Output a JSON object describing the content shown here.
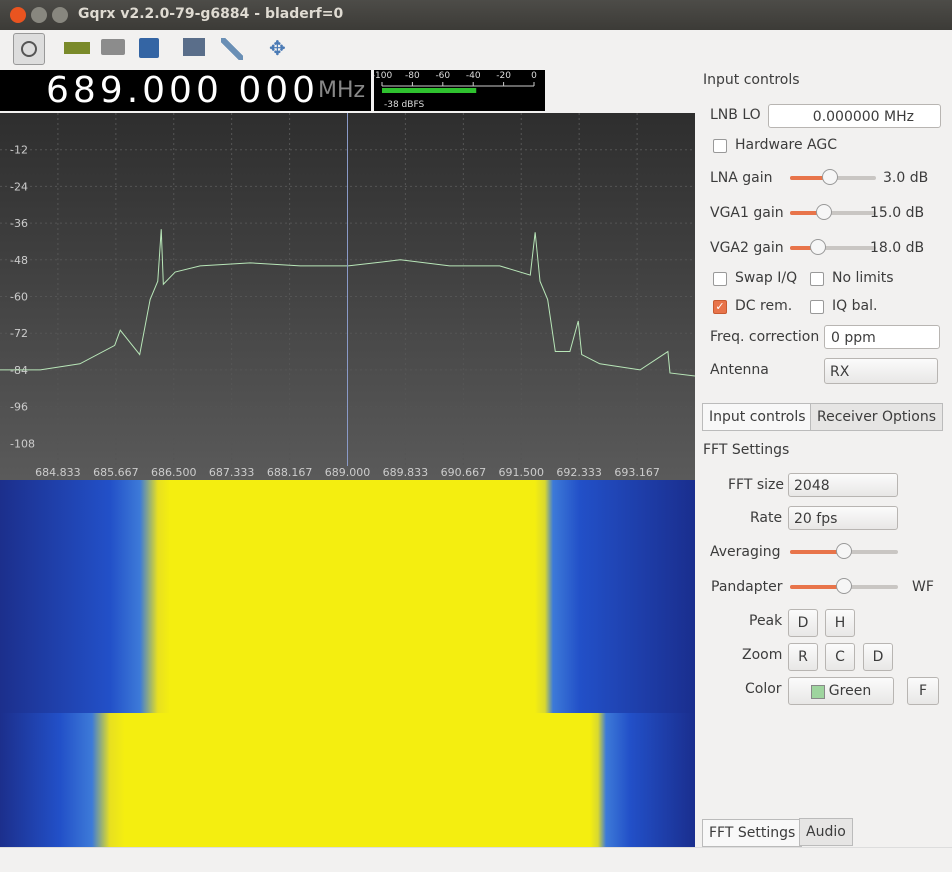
{
  "window": {
    "title": "Gqrx v2.2.0-79-g6884 - bladerf=0"
  },
  "frequency": {
    "digits": "689.000 000",
    "unit": "MHz"
  },
  "meter": {
    "lim": [
      -100,
      0
    ],
    "ticks": [
      -100,
      -80,
      -60,
      -40,
      -20,
      0
    ],
    "level": -38,
    "level_label": "-38 dBFS"
  },
  "plot": {
    "ylim": [
      -120,
      0
    ],
    "yticks": [
      -12,
      -24,
      -36,
      -48,
      -60,
      -72,
      -84,
      -96,
      -108
    ],
    "xlim": [
      684,
      694
    ],
    "xticks": [
      684.833,
      685.667,
      {
        "value": 686.5,
        "label": "686.500"
      },
      687.333,
      688.167,
      {
        "value": 689,
        "label": "689.000"
      },
      689.833,
      690.667,
      {
        "value": 691.5,
        "label": "691.500"
      },
      692.333,
      693.167
    ],
    "trace": {
      "x": [
        684.0,
        684.58,
        685.15,
        685.65,
        685.73,
        686.01,
        686.16,
        686.27,
        686.32,
        686.35,
        686.52,
        686.88,
        687.6,
        688.32,
        689.01,
        689.76,
        690.47,
        691.19,
        691.63,
        691.7,
        691.77,
        691.88,
        691.99,
        692.2,
        692.32,
        692.37,
        692.63,
        693.21,
        693.61,
        693.64,
        694.0
      ],
      "y": [
        -84,
        -84,
        -82,
        -76,
        -71,
        -79,
        -61,
        -55,
        -38,
        -56,
        -52,
        -50,
        -49,
        -50,
        -50,
        -48,
        -50,
        -50,
        -53,
        -39,
        -55,
        -61,
        -78,
        -78,
        -68,
        -79,
        -82,
        -84,
        -78,
        -85,
        -86
      ]
    }
  },
  "input_controls": {
    "title": "Input controls",
    "lnb_lo": "LNB LO",
    "lnb_lo_value": "0.000000 MHz",
    "hardware_agc": "Hardware AGC",
    "lna_gain": "LNA gain",
    "lna_gain_value": "3.0 dB",
    "vga1_gain": "VGA1 gain",
    "vga1_gain_value": "15.0 dB",
    "vga2_gain": "VGA2 gain",
    "vga2_gain_value": "18.0 dB",
    "swap_iq": "Swap I/Q",
    "no_limits": "No limits",
    "dc_rem": "DC rem.",
    "iq_bal": "IQ bal.",
    "freq_correction": "Freq. correction",
    "freq_correction_value": "0 ppm",
    "antenna": "Antenna",
    "antenna_value": "RX",
    "tabs": [
      "Input controls",
      "Receiver Options"
    ]
  },
  "fft_settings": {
    "title": "FFT Settings",
    "fft_size": "FFT size",
    "fft_size_value": "2048",
    "rate": "Rate",
    "rate_value": "20 fps",
    "averaging": "Averaging",
    "pandapter": "Pandapter",
    "wf": "WF",
    "peak": "Peak",
    "peak_buttons": [
      "D",
      "H"
    ],
    "zoom": "Zoom",
    "zoom_buttons": [
      "R",
      "C",
      "D"
    ],
    "color": "Color",
    "color_value": "Green",
    "f_button": "F",
    "tabs": [
      "FFT Settings",
      "Audio"
    ]
  }
}
